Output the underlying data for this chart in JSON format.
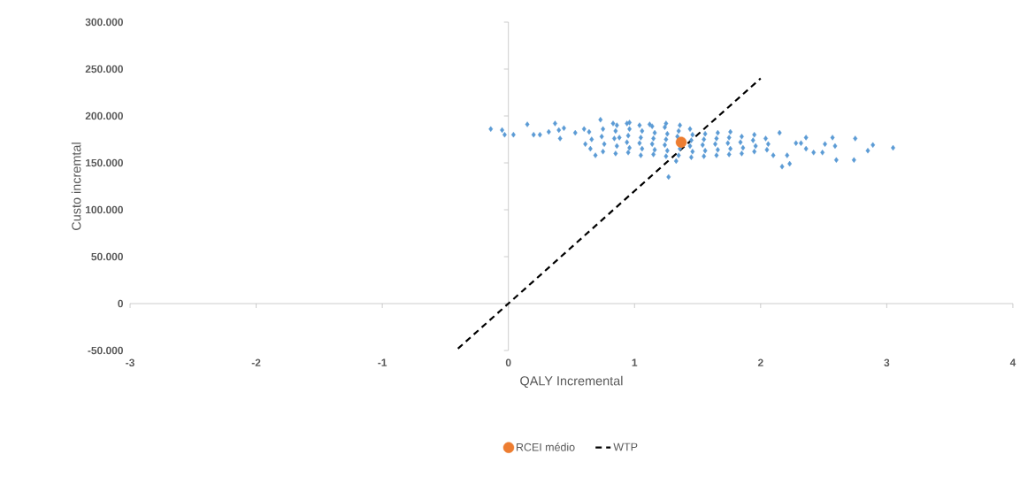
{
  "chart_data": {
    "type": "scatter",
    "xlabel": "QALY Incremental",
    "ylabel": "Custo incremtal",
    "xlim": [
      -3,
      4
    ],
    "ylim": [
      -50000,
      300000
    ],
    "xticks": [
      -3,
      -2,
      -1,
      0,
      1,
      2,
      3,
      4
    ],
    "yticks": [
      {
        "value": -50000,
        "label": "-50.000"
      },
      0,
      {
        "value": 50000,
        "label": "50.000"
      },
      {
        "value": 100000,
        "label": "100.000"
      },
      {
        "value": 150000,
        "label": "150.000"
      },
      {
        "value": 200000,
        "label": "200.000"
      },
      {
        "value": 250000,
        "label": "250.000"
      },
      {
        "value": 300000,
        "label": "300.000"
      }
    ],
    "legend": "bottom",
    "series": [
      {
        "color": "#5b9bd5",
        "marker": "diamond",
        "x": [
          -0.14,
          -0.05,
          -0.03,
          0.04,
          0.15,
          0.2,
          0.25,
          0.32,
          0.37,
          0.4,
          0.41,
          0.44,
          0.53,
          0.6,
          0.61,
          0.69,
          0.73,
          0.83,
          0.88,
          0.96,
          1.12,
          1.27,
          1.33,
          2.1,
          2.17,
          2.15,
          2.36,
          2.36,
          2.42,
          2.49,
          2.51,
          2.57,
          2.59,
          2.6,
          2.75,
          2.74,
          2.85,
          2.89,
          3.05,
          2.32,
          2.23,
          2.21,
          2.28,
          0.65,
          0.66,
          0.64,
          0.75,
          0.76,
          0.74,
          0.75,
          0.85,
          0.86,
          0.84,
          0.85,
          0.86,
          0.95,
          0.96,
          0.94,
          0.95,
          0.96,
          0.94,
          1.05,
          1.06,
          1.04,
          1.05,
          1.06,
          1.04,
          1.15,
          1.16,
          1.14,
          1.15,
          1.16,
          1.14,
          1.25,
          1.26,
          1.24,
          1.25,
          1.26,
          1.24,
          1.25,
          1.35,
          1.36,
          1.34,
          1.35,
          1.36,
          1.45,
          1.46,
          1.44,
          1.45,
          1.46,
          1.44,
          1.55,
          1.56,
          1.54,
          1.55,
          1.56,
          1.65,
          1.66,
          1.64,
          1.65,
          1.66,
          1.75,
          1.76,
          1.74,
          1.75,
          1.76,
          1.85,
          1.86,
          1.84,
          1.85,
          1.95,
          1.96,
          1.94,
          1.95,
          2.05,
          2.06,
          2.04
        ],
        "values": [
          186000,
          185000,
          180000,
          180000,
          191000,
          180000,
          180000,
          183000,
          192000,
          185000,
          176000,
          187000,
          182000,
          186000,
          170000,
          158000,
          196000,
          192000,
          177000,
          193000,
          191000,
          135000,
          152000,
          158000,
          146000,
          182000,
          177000,
          165000,
          161000,
          161000,
          170000,
          177000,
          168000,
          153000,
          176000,
          153000,
          163000,
          169000,
          166000,
          171000,
          149000,
          158000,
          171000,
          165000,
          175000,
          183000,
          162000,
          170000,
          178000,
          186000,
          160000,
          168000,
          176000,
          184000,
          190000,
          161000,
          166000,
          172000,
          179000,
          186000,
          192000,
          158000,
          165000,
          171000,
          177000,
          184000,
          190000,
          159000,
          164000,
          170000,
          176000,
          182000,
          189000,
          157000,
          163000,
          169000,
          175000,
          181000,
          188000,
          192000,
          158000,
          165000,
          178000,
          184000,
          190000,
          156000,
          162000,
          168000,
          174000,
          180000,
          186000,
          157000,
          163000,
          169000,
          175000,
          181000,
          158000,
          164000,
          170000,
          176000,
          182000,
          159000,
          165000,
          171000,
          177000,
          183000,
          160000,
          166000,
          172000,
          178000,
          162000,
          168000,
          174000,
          180000,
          164000,
          170000,
          176000
        ]
      },
      {
        "name": "RCEI médio",
        "color": "#ed7d31",
        "marker": "circle",
        "x": [
          1.37
        ],
        "values": [
          172000
        ]
      },
      {
        "type": "line",
        "name": "WTP",
        "color": "#000000",
        "line_style": "dashed",
        "marker": "none",
        "x": [
          -0.4,
          2.0
        ],
        "values": [
          -48000,
          240000
        ]
      }
    ]
  }
}
